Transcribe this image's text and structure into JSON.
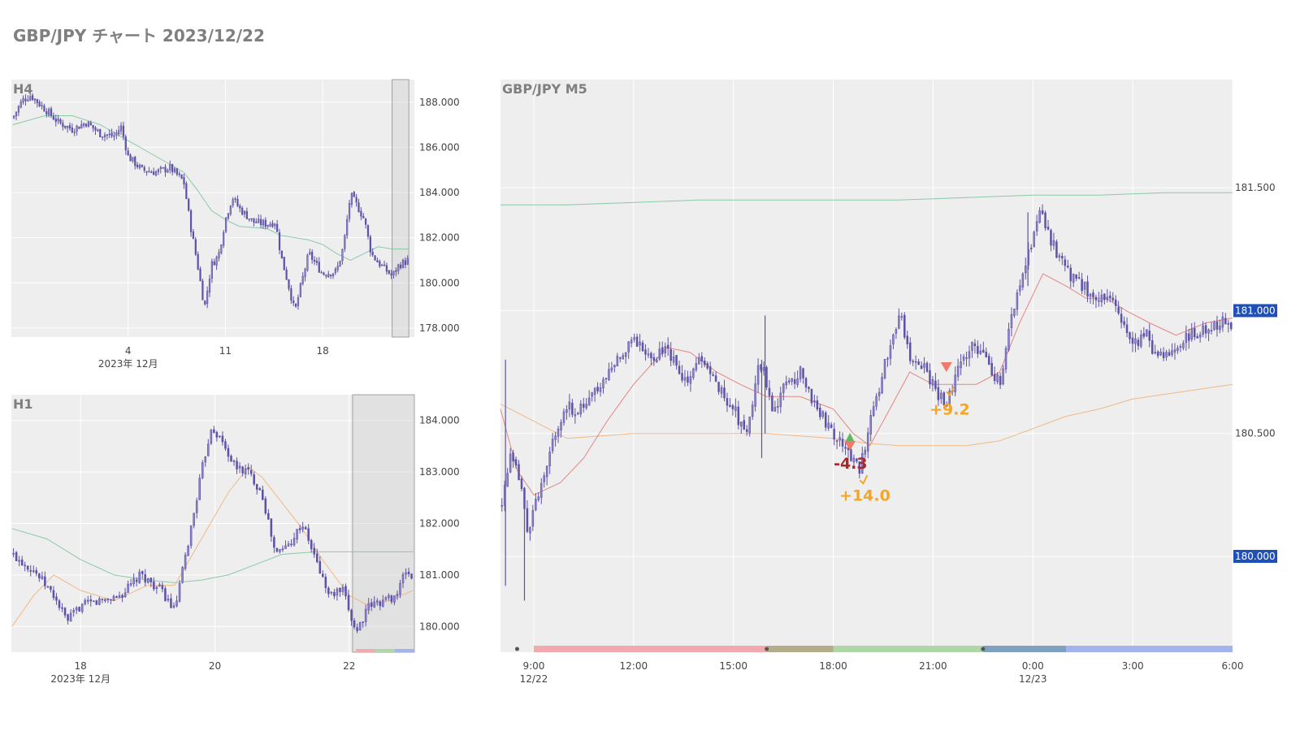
{
  "page": {
    "title": "GBP/JPY チャート 2023/12/22"
  },
  "colors": {
    "candle": "#5d52a8",
    "plot_bg": "#eeeeee",
    "grid": "#ffffff",
    "ma_fast": "#e07a7a",
    "ma_mid": "#f0b27a",
    "ma_slow": "#7fc4a0",
    "price_badge": "#1f4fb8",
    "profit": "#f5a623",
    "loss": "#a52a2a",
    "buy_marker": "#5cb85c",
    "sell_marker": "#f07a6a"
  },
  "chart_data": [
    {
      "id": "h4",
      "type": "candlestick",
      "title": "H4",
      "x_ticks": [
        {
          "x": 4,
          "label": "4"
        },
        {
          "x": 11,
          "label": "11"
        },
        {
          "x": 18,
          "label": "18"
        }
      ],
      "x_sublabel": "2023年 12月",
      "xlim": [
        -4.4,
        24.6
      ],
      "ylim": [
        177.6,
        189.0
      ],
      "y_ticks": [
        178,
        180,
        182,
        184,
        186,
        188
      ],
      "y_tick_labels": [
        "178.000",
        "180.000",
        "182.000",
        "184.000",
        "186.000",
        "188.000"
      ],
      "highlight_x": [
        23.0,
        24.2
      ],
      "close_path": [
        [
          -4.3,
          187.3
        ],
        [
          -3.6,
          188.1
        ],
        [
          -3.0,
          188.3
        ],
        [
          -2.0,
          187.7
        ],
        [
          -1.0,
          187.1
        ],
        [
          0.0,
          186.8
        ],
        [
          1.0,
          187.1
        ],
        [
          2.0,
          186.6
        ],
        [
          3.0,
          186.5
        ],
        [
          3.5,
          186.9
        ],
        [
          4.0,
          185.6
        ],
        [
          5.0,
          185.0
        ],
        [
          6.0,
          184.9
        ],
        [
          7.0,
          185.1
        ],
        [
          8.0,
          184.5
        ],
        [
          8.5,
          182.5
        ],
        [
          9.0,
          180.8
        ],
        [
          9.5,
          178.9
        ],
        [
          10.0,
          180.8
        ],
        [
          10.5,
          181.2
        ],
        [
          11.0,
          182.8
        ],
        [
          11.5,
          183.8
        ],
        [
          12.0,
          183.3
        ],
        [
          13.0,
          182.7
        ],
        [
          14.0,
          182.6
        ],
        [
          14.6,
          182.7
        ],
        [
          15.0,
          181.2
        ],
        [
          15.5,
          180.0
        ],
        [
          16.0,
          178.7
        ],
        [
          16.4,
          179.8
        ],
        [
          17.0,
          181.3
        ],
        [
          18.0,
          180.4
        ],
        [
          19.0,
          180.5
        ],
        [
          19.5,
          181.6
        ],
        [
          20.0,
          183.9
        ],
        [
          20.5,
          183.4
        ],
        [
          21.0,
          182.8
        ],
        [
          21.5,
          181.3
        ],
        [
          22.0,
          180.9
        ],
        [
          23.0,
          180.3
        ],
        [
          23.5,
          180.8
        ],
        [
          24.2,
          181.0
        ]
      ],
      "ma_slow_path": [
        [
          -4.3,
          187.0
        ],
        [
          -2.0,
          187.4
        ],
        [
          0.0,
          187.4
        ],
        [
          2.0,
          187.0
        ],
        [
          4.0,
          186.3
        ],
        [
          6.0,
          185.6
        ],
        [
          8.0,
          184.9
        ],
        [
          9.0,
          184.1
        ],
        [
          10.0,
          183.2
        ],
        [
          11.0,
          182.8
        ],
        [
          12.0,
          182.5
        ],
        [
          14.0,
          182.4
        ],
        [
          15.0,
          182.1
        ],
        [
          16.0,
          182.0
        ],
        [
          17.0,
          181.9
        ],
        [
          18.0,
          181.7
        ],
        [
          19.0,
          181.3
        ],
        [
          20.0,
          181.0
        ],
        [
          21.0,
          181.3
        ],
        [
          22.0,
          181.6
        ],
        [
          23.0,
          181.5
        ],
        [
          24.2,
          181.5
        ]
      ]
    },
    {
      "id": "h1",
      "type": "candlestick",
      "title": "H1",
      "x_ticks": [
        {
          "x": 18,
          "label": "18"
        },
        {
          "x": 20,
          "label": "20"
        },
        {
          "x": 22,
          "label": "22"
        }
      ],
      "x_sublabel": "2023年 12月",
      "xlim": [
        16.97,
        22.97
      ],
      "ylim": [
        179.5,
        184.5
      ],
      "y_ticks": [
        180,
        181,
        182,
        183,
        184
      ],
      "y_tick_labels": [
        "180.000",
        "181.000",
        "182.000",
        "183.000",
        "184.000"
      ],
      "highlight_x": [
        22.05,
        22.97
      ],
      "close_path": [
        [
          16.98,
          181.4
        ],
        [
          17.3,
          181.1
        ],
        [
          17.6,
          180.6
        ],
        [
          17.8,
          180.1
        ],
        [
          18.0,
          180.4
        ],
        [
          18.3,
          180.5
        ],
        [
          18.6,
          180.6
        ],
        [
          18.9,
          181.0
        ],
        [
          19.2,
          180.7
        ],
        [
          19.4,
          180.3
        ],
        [
          19.6,
          181.6
        ],
        [
          19.8,
          183.0
        ],
        [
          19.95,
          183.9
        ],
        [
          20.1,
          183.6
        ],
        [
          20.3,
          183.1
        ],
        [
          20.5,
          183.0
        ],
        [
          20.7,
          182.6
        ],
        [
          20.9,
          181.4
        ],
        [
          21.1,
          181.6
        ],
        [
          21.3,
          182.0
        ],
        [
          21.5,
          181.3
        ],
        [
          21.7,
          180.6
        ],
        [
          21.9,
          180.7
        ],
        [
          22.1,
          179.9
        ],
        [
          22.3,
          180.4
        ],
        [
          22.5,
          180.5
        ],
        [
          22.7,
          180.6
        ],
        [
          22.85,
          181.1
        ],
        [
          22.95,
          180.9
        ]
      ],
      "ma_slow_path": [
        [
          16.98,
          181.9
        ],
        [
          17.5,
          181.7
        ],
        [
          18.0,
          181.3
        ],
        [
          18.5,
          181.0
        ],
        [
          19.0,
          180.9
        ],
        [
          19.4,
          180.85
        ],
        [
          19.8,
          180.9
        ],
        [
          20.2,
          181.0
        ],
        [
          20.6,
          181.2
        ],
        [
          21.0,
          181.4
        ],
        [
          21.5,
          181.45
        ],
        [
          22.0,
          181.45
        ],
        [
          22.5,
          181.45
        ],
        [
          22.95,
          181.45
        ]
      ],
      "ma_mid_path": [
        [
          16.98,
          180.0
        ],
        [
          17.3,
          180.6
        ],
        [
          17.6,
          181.0
        ],
        [
          18.0,
          180.7
        ],
        [
          18.5,
          180.5
        ],
        [
          19.0,
          180.8
        ],
        [
          19.4,
          180.8
        ],
        [
          19.8,
          181.7
        ],
        [
          20.2,
          182.6
        ],
        [
          20.5,
          183.1
        ],
        [
          20.7,
          182.9
        ],
        [
          21.0,
          182.4
        ],
        [
          21.3,
          181.9
        ],
        [
          21.6,
          181.3
        ],
        [
          22.0,
          180.6
        ],
        [
          22.3,
          180.4
        ],
        [
          22.6,
          180.5
        ],
        [
          22.95,
          180.7
        ]
      ]
    },
    {
      "id": "m5",
      "type": "candlestick",
      "title": "GBP/JPY M5",
      "x_ticks": [
        {
          "x": 9,
          "label": "9:00",
          "sub": "12/22"
        },
        {
          "x": 12,
          "label": "12:00"
        },
        {
          "x": 15,
          "label": "15:00"
        },
        {
          "x": 18,
          "label": "18:00"
        },
        {
          "x": 21,
          "label": "21:00"
        },
        {
          "x": 24,
          "label": "0:00",
          "sub": "12/23"
        },
        {
          "x": 27,
          "label": "3:00"
        },
        {
          "x": 30,
          "label": "6:00"
        }
      ],
      "xlim": [
        8.0,
        30.0
      ],
      "ylim": [
        179.61,
        181.94
      ],
      "y_ticks": [
        180.0,
        180.5,
        181.0,
        181.5
      ],
      "y_tick_labels": [
        "180.000",
        "180.500",
        "181.000",
        "181.500"
      ],
      "price_badges": [
        {
          "value": 181.0,
          "label": "181.000"
        },
        {
          "value": 180.0,
          "label": "180.000"
        }
      ],
      "close_path": [
        [
          8.0,
          180.2
        ],
        [
          8.3,
          180.4
        ],
        [
          8.6,
          180.3
        ],
        [
          8.8,
          180.1
        ],
        [
          9.0,
          180.2
        ],
        [
          9.3,
          180.3
        ],
        [
          9.6,
          180.5
        ],
        [
          10.0,
          180.6
        ],
        [
          10.5,
          180.6
        ],
        [
          11.0,
          180.7
        ],
        [
          11.5,
          180.8
        ],
        [
          12.0,
          180.9
        ],
        [
          12.5,
          180.8
        ],
        [
          13.0,
          180.85
        ],
        [
          13.5,
          180.7
        ],
        [
          14.0,
          180.8
        ],
        [
          14.5,
          180.7
        ],
        [
          15.0,
          180.6
        ],
        [
          15.4,
          180.5
        ],
        [
          15.8,
          180.8
        ],
        [
          16.2,
          180.6
        ],
        [
          16.6,
          180.7
        ],
        [
          17.0,
          180.75
        ],
        [
          17.5,
          180.6
        ],
        [
          18.0,
          180.5
        ],
        [
          18.4,
          180.45
        ],
        [
          18.8,
          180.35
        ],
        [
          19.2,
          180.6
        ],
        [
          19.6,
          180.8
        ],
        [
          20.0,
          181.0
        ],
        [
          20.3,
          180.8
        ],
        [
          20.6,
          180.8
        ],
        [
          21.0,
          180.7
        ],
        [
          21.4,
          180.6
        ],
        [
          21.8,
          180.8
        ],
        [
          22.2,
          180.85
        ],
        [
          22.6,
          180.8
        ],
        [
          23.0,
          180.7
        ],
        [
          23.4,
          181.0
        ],
        [
          23.8,
          181.2
        ],
        [
          24.2,
          181.4
        ],
        [
          24.5,
          181.3
        ],
        [
          24.8,
          181.2
        ],
        [
          25.1,
          181.15
        ],
        [
          25.5,
          181.1
        ],
        [
          25.9,
          181.05
        ],
        [
          26.3,
          181.05
        ],
        [
          26.7,
          180.95
        ],
        [
          27.0,
          180.85
        ],
        [
          27.4,
          180.9
        ],
        [
          27.8,
          180.8
        ],
        [
          28.2,
          180.85
        ],
        [
          28.6,
          180.9
        ],
        [
          29.0,
          180.9
        ],
        [
          29.4,
          180.95
        ],
        [
          29.8,
          180.95
        ],
        [
          30.0,
          180.95
        ]
      ],
      "extra_spikes": [
        {
          "x": 8.15,
          "low": 179.88,
          "high": 180.8
        },
        {
          "x": 8.72,
          "low": 179.82,
          "high": 180.2
        },
        {
          "x": 15.85,
          "low": 180.4,
          "high": 180.8
        },
        {
          "x": 15.95,
          "low": 180.5,
          "high": 180.98
        },
        {
          "x": 23.85,
          "low": 181.1,
          "high": 181.4
        }
      ],
      "ma_fast_path": [
        [
          8.0,
          180.6
        ],
        [
          8.5,
          180.35
        ],
        [
          9.0,
          180.25
        ],
        [
          9.8,
          180.3
        ],
        [
          10.5,
          180.4
        ],
        [
          11.2,
          180.55
        ],
        [
          12.0,
          180.7
        ],
        [
          13.0,
          180.85
        ],
        [
          13.7,
          180.83
        ],
        [
          14.5,
          180.75
        ],
        [
          15.2,
          180.7
        ],
        [
          16.0,
          180.65
        ],
        [
          17.0,
          180.65
        ],
        [
          18.0,
          180.6
        ],
        [
          18.6,
          180.5
        ],
        [
          19.1,
          180.45
        ],
        [
          19.7,
          180.6
        ],
        [
          20.3,
          180.75
        ],
        [
          21.0,
          180.7
        ],
        [
          21.6,
          180.7
        ],
        [
          22.3,
          180.7
        ],
        [
          23.0,
          180.75
        ],
        [
          23.6,
          180.95
        ],
        [
          24.3,
          181.15
        ],
        [
          25.0,
          181.1
        ],
        [
          25.6,
          181.05
        ],
        [
          26.2,
          181.05
        ],
        [
          26.8,
          181.0
        ],
        [
          27.5,
          180.95
        ],
        [
          28.3,
          180.9
        ],
        [
          29.2,
          180.95
        ],
        [
          30.0,
          180.97
        ]
      ],
      "ma_mid_path": [
        [
          8.0,
          180.62
        ],
        [
          9.0,
          180.55
        ],
        [
          10.0,
          180.48
        ],
        [
          12.0,
          180.5
        ],
        [
          14.0,
          180.5
        ],
        [
          16.0,
          180.5
        ],
        [
          18.0,
          180.48
        ],
        [
          19.0,
          180.46
        ],
        [
          20.0,
          180.45
        ],
        [
          22.0,
          180.45
        ],
        [
          23.0,
          180.47
        ],
        [
          24.0,
          180.52
        ],
        [
          25.0,
          180.57
        ],
        [
          26.0,
          180.6
        ],
        [
          27.0,
          180.64
        ],
        [
          28.0,
          180.66
        ],
        [
          29.0,
          180.68
        ],
        [
          30.0,
          180.7
        ]
      ],
      "ma_slow_path": [
        [
          8.0,
          181.43
        ],
        [
          10.0,
          181.43
        ],
        [
          12.0,
          181.44
        ],
        [
          14.0,
          181.45
        ],
        [
          16.0,
          181.45
        ],
        [
          18.0,
          181.45
        ],
        [
          20.0,
          181.45
        ],
        [
          22.0,
          181.46
        ],
        [
          24.0,
          181.47
        ],
        [
          26.0,
          181.47
        ],
        [
          28.0,
          181.48
        ],
        [
          30.0,
          181.48
        ]
      ],
      "session_bar": [
        {
          "from": 9.0,
          "to": 16.0,
          "color": "#f2a9ad"
        },
        {
          "from": 16.0,
          "to": 18.0,
          "color": "#b4ac8a"
        },
        {
          "from": 18.0,
          "to": 22.5,
          "color": "#aed6a9"
        },
        {
          "from": 22.5,
          "to": 25.0,
          "color": "#7fa0c0"
        },
        {
          "from": 25.0,
          "to": 30.0,
          "color": "#a3b3eb"
        }
      ],
      "session_dots": [
        8.5,
        16.0,
        22.5
      ],
      "trade_markers": [
        {
          "x": 18.5,
          "y": 180.48,
          "kind": "buy"
        },
        {
          "x": 18.5,
          "y": 180.45,
          "kind": "sell"
        },
        {
          "x": 21.4,
          "y": 180.77,
          "kind": "sell"
        }
      ],
      "trade_labels": [
        {
          "x": 18.52,
          "y": 180.38,
          "text": "-4.3",
          "kind": "loss"
        },
        {
          "x": 18.95,
          "y": 180.25,
          "text": "+14.0",
          "kind": "profit"
        },
        {
          "x": 21.5,
          "y": 180.6,
          "text": "+9.2",
          "kind": "profit"
        }
      ],
      "trade_checks": [
        {
          "x": 18.9,
          "y": 180.31
        },
        {
          "x": 21.5,
          "y": 180.67
        }
      ]
    }
  ]
}
